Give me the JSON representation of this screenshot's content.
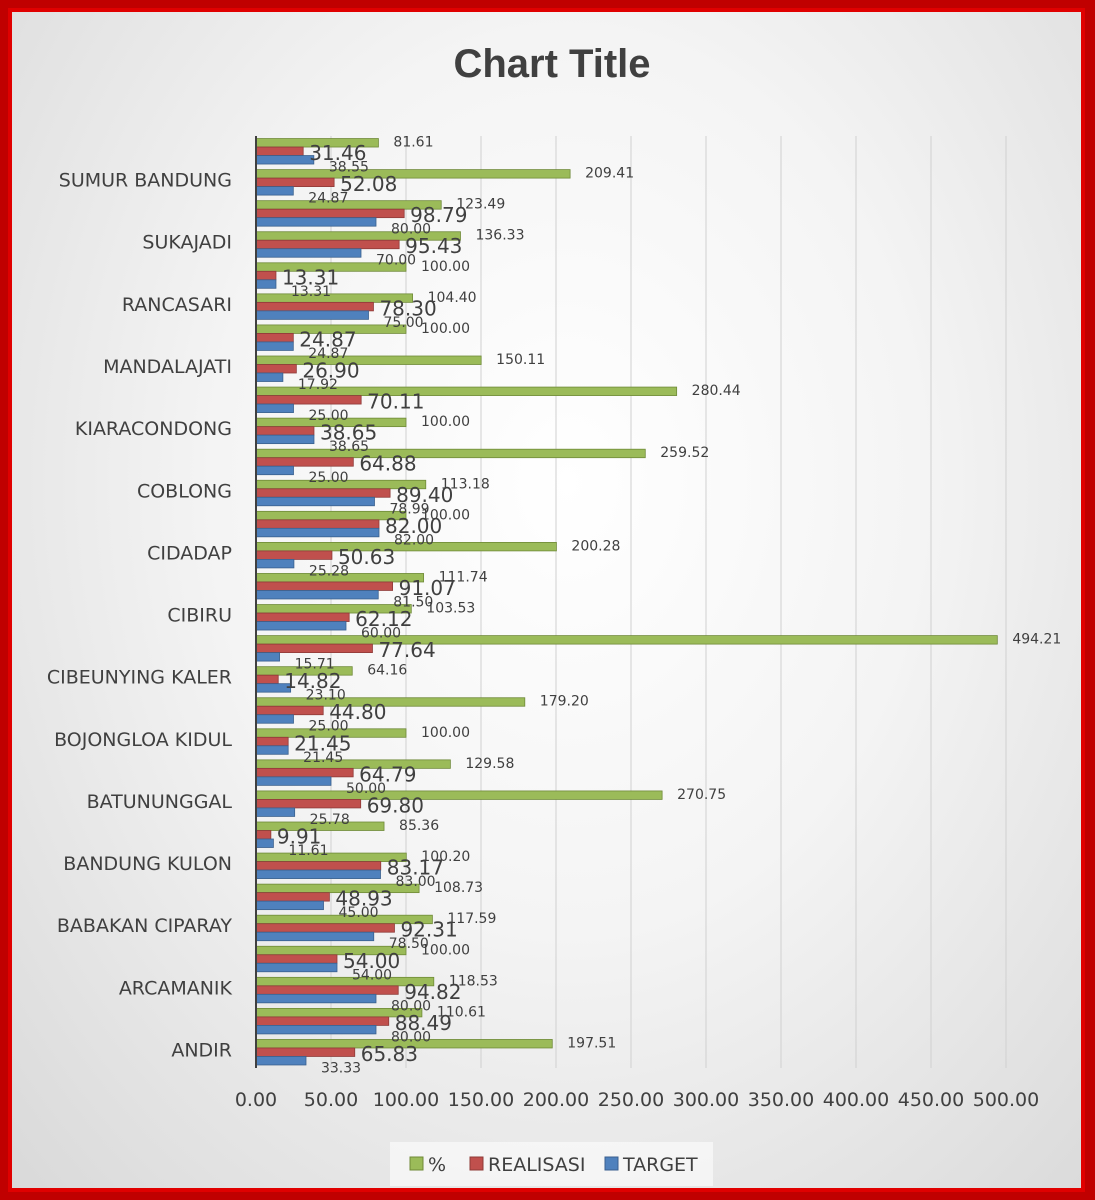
{
  "chart_data": {
    "type": "bar",
    "orientation": "horizontal",
    "title": "Chart Title",
    "xlim": [
      0,
      500
    ],
    "x_ticks": [
      "0.00",
      "50.00",
      "100.00",
      "150.00",
      "200.00",
      "250.00",
      "300.00",
      "350.00",
      "400.00",
      "450.00",
      "500.00"
    ],
    "category_labels": [
      "ANDIR",
      "ARCAMANIK",
      "BABAKAN CIPARAY",
      "BANDUNG KULON",
      "BATUNUNGGAL",
      "BOJONGLOA KIDUL",
      "CIBEUNYING KALER",
      "CIBIRU",
      "CIDADAP",
      "COBLONG",
      "KIARACONDONG",
      "MANDALAJATI",
      "RANCASARI",
      "SUKAJADI",
      "SUMUR BANDUNG"
    ],
    "rows_bottom_to_top": [
      {
        "pct": 197.51,
        "realisasi": 65.83,
        "target": 33.33
      },
      {
        "pct": 110.61,
        "realisasi": 88.49,
        "target": 80.0
      },
      {
        "pct": 118.53,
        "realisasi": 94.82,
        "target": 80.0
      },
      {
        "pct": 100.0,
        "realisasi": 54.0,
        "target": 54.0
      },
      {
        "pct": 117.59,
        "realisasi": 92.31,
        "target": 78.5
      },
      {
        "pct": 108.73,
        "realisasi": 48.93,
        "target": 45.0
      },
      {
        "pct": 100.2,
        "realisasi": 83.17,
        "target": 83.0
      },
      {
        "pct": 85.36,
        "realisasi": 9.91,
        "target": 11.61
      },
      {
        "pct": 270.75,
        "realisasi": 69.8,
        "target": 25.78
      },
      {
        "pct": 129.58,
        "realisasi": 64.79,
        "target": 50.0
      },
      {
        "pct": 100.0,
        "realisasi": 21.45,
        "target": 21.45
      },
      {
        "pct": 179.2,
        "realisasi": 44.8,
        "target": 25.0
      },
      {
        "pct": 64.16,
        "realisasi": 14.82,
        "target": 23.1
      },
      {
        "pct": 494.21,
        "realisasi": 77.64,
        "target": 15.71
      },
      {
        "pct": 103.53,
        "realisasi": 62.12,
        "target": 60.0
      },
      {
        "pct": 111.74,
        "realisasi": 91.07,
        "target": 81.5
      },
      {
        "pct": 200.28,
        "realisasi": 50.63,
        "target": 25.28
      },
      {
        "pct": 100.0,
        "realisasi": 82.0,
        "target": 82.0
      },
      {
        "pct": 113.18,
        "realisasi": 89.4,
        "target": 78.99
      },
      {
        "pct": 259.52,
        "realisasi": 64.88,
        "target": 25.0
      },
      {
        "pct": 100.0,
        "realisasi": 38.65,
        "target": 38.65
      },
      {
        "pct": 280.44,
        "realisasi": 70.11,
        "target": 25.0
      },
      {
        "pct": 150.11,
        "realisasi": 26.9,
        "target": 17.92
      },
      {
        "pct": 100.0,
        "realisasi": 24.87,
        "target": 24.87
      },
      {
        "pct": 104.4,
        "realisasi": 78.3,
        "target": 75.0
      },
      {
        "pct": 100.0,
        "realisasi": 13.31,
        "target": 13.31
      },
      {
        "pct": 136.33,
        "realisasi": 95.43,
        "target": 70.0
      },
      {
        "pct": 123.49,
        "realisasi": 98.79,
        "target": 80.0
      },
      {
        "pct": 209.41,
        "realisasi": 52.08,
        "target": 24.87
      },
      {
        "pct": 81.61,
        "realisasi": 31.46,
        "target": 38.55
      }
    ],
    "series": [
      {
        "key": "pct",
        "name": "%",
        "color": "#9bbb59"
      },
      {
        "key": "realisasi",
        "name": "REALISASI",
        "color": "#c0504d"
      },
      {
        "key": "target",
        "name": "TARGET",
        "color": "#4f81bd"
      }
    ],
    "legend_position": "bottom",
    "grid": true
  }
}
